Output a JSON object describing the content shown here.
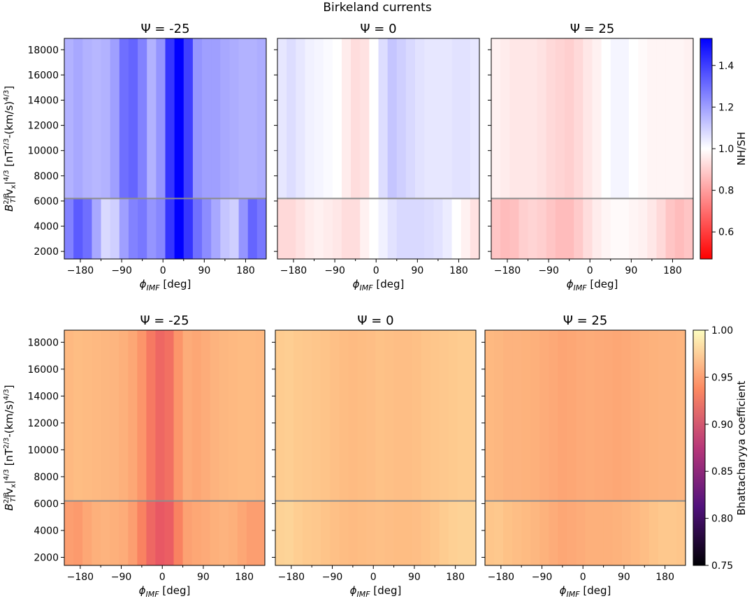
{
  "figure_title": "Birkeland currents",
  "x_tick_labels": [
    "−180",
    "−90",
    "0",
    "90",
    "180"
  ],
  "y_tick_labels": [
    "2000",
    "4000",
    "6000",
    "8000",
    "10000",
    "12000",
    "14000",
    "16000",
    "18000"
  ],
  "x_axis_label": {
    "phi": "ϕ",
    "sub": "IMF",
    "unit": " [deg]"
  },
  "y_axis_label": {
    "b": "B",
    "b_sub": "T",
    "b_sup": "2/3",
    "v": "|v",
    "v_sub": "x",
    "bar": "|",
    "v_sup": "4/3",
    "unit": " [nT",
    "unit_sup": "2/3",
    "unit_mid": "-(km/s)",
    "unit_sup2": "4/3",
    "close": "]"
  },
  "colorbars": {
    "top": {
      "label": "NH/SH",
      "ticks": [
        "0.6",
        "0.8",
        "1.0",
        "1.2",
        "1.4"
      ],
      "colors": {
        "low": "#ff0000",
        "mid": "#ffffff",
        "high": "#0000ff"
      }
    },
    "bottom": {
      "label": "Bhattacharyya coefficient",
      "ticks": [
        "0.75",
        "0.80",
        "0.85",
        "0.90",
        "0.95",
        "1.00"
      ],
      "colormap": "magma"
    }
  },
  "reference_line_color": "#8c8c8c",
  "chart_data": [
    {
      "type": "heatmap",
      "row": "top",
      "psi_label": "Ψ = -25",
      "metric": "NH/SH",
      "x": [
        -205,
        -185,
        -165,
        -145,
        -125,
        -105,
        -85,
        -65,
        -45,
        -25,
        -5,
        15,
        35,
        55,
        75,
        95,
        115,
        135,
        155,
        175,
        195,
        215
      ],
      "xlim": [
        -215,
        225
      ],
      "ylim": [
        1400,
        18900
      ],
      "split_y": 6200,
      "reference_y": 6200,
      "colorbar_range": [
        0.47,
        1.53
      ],
      "values_upper": [
        1.16,
        1.18,
        1.16,
        1.15,
        1.16,
        1.2,
        1.3,
        1.32,
        1.26,
        1.16,
        1.22,
        1.42,
        1.53,
        1.4,
        1.22,
        1.2,
        1.2,
        1.18,
        1.17,
        1.16,
        1.16,
        1.17
      ],
      "values_lower": [
        1.26,
        1.34,
        1.3,
        1.18,
        1.08,
        1.1,
        1.2,
        1.26,
        1.28,
        1.22,
        1.25,
        1.42,
        1.53,
        1.42,
        1.3,
        1.24,
        1.18,
        1.12,
        1.1,
        1.22,
        1.32,
        1.28
      ]
    },
    {
      "type": "heatmap",
      "row": "top",
      "psi_label": "Ψ = 0",
      "metric": "NH/SH",
      "x": [
        -205,
        -185,
        -165,
        -145,
        -125,
        -105,
        -85,
        -65,
        -45,
        -25,
        -5,
        15,
        35,
        55,
        75,
        95,
        115,
        135,
        155,
        175,
        195,
        215
      ],
      "xlim": [
        -215,
        225
      ],
      "ylim": [
        1400,
        18900
      ],
      "split_y": 6200,
      "reference_y": 6200,
      "colorbar_range": [
        0.47,
        1.53
      ],
      "values_upper": [
        1.05,
        1.07,
        1.05,
        1.03,
        1.02,
        1.01,
        1.0,
        0.96,
        0.93,
        0.94,
        1.0,
        1.07,
        1.12,
        1.1,
        1.08,
        1.06,
        1.05,
        1.05,
        1.05,
        1.06,
        1.06,
        1.05
      ],
      "values_lower": [
        0.92,
        0.92,
        0.94,
        0.96,
        0.97,
        0.96,
        0.95,
        0.93,
        0.93,
        0.97,
        1.0,
        1.03,
        1.06,
        1.08,
        1.08,
        1.08,
        1.07,
        1.06,
        1.04,
        1.0,
        0.97,
        0.94
      ]
    },
    {
      "type": "heatmap",
      "row": "top",
      "psi_label": "Ψ = 25",
      "metric": "NH/SH",
      "x": [
        -205,
        -185,
        -165,
        -145,
        -125,
        -105,
        -85,
        -65,
        -45,
        -25,
        -5,
        15,
        35,
        55,
        75,
        95,
        115,
        135,
        155,
        175,
        195,
        215
      ],
      "xlim": [
        -215,
        225
      ],
      "ylim": [
        1400,
        18900
      ],
      "split_y": 6200,
      "reference_y": 6200,
      "colorbar_range": [
        0.47,
        1.53
      ],
      "values_upper": [
        0.97,
        0.96,
        0.95,
        0.95,
        0.95,
        0.94,
        0.92,
        0.91,
        0.9,
        0.92,
        0.95,
        0.97,
        1.0,
        1.02,
        1.02,
        1.0,
        0.99,
        0.98,
        0.98,
        0.98,
        0.98,
        0.97
      ],
      "values_lower": [
        0.88,
        0.86,
        0.87,
        0.9,
        0.91,
        0.9,
        0.88,
        0.86,
        0.86,
        0.89,
        0.93,
        0.96,
        0.98,
        0.99,
        0.99,
        0.98,
        0.97,
        0.95,
        0.92,
        0.88,
        0.86,
        0.88
      ]
    },
    {
      "type": "heatmap",
      "row": "bottom",
      "psi_label": "Ψ = -25",
      "metric": "Bhattacharyya coefficient",
      "x": [
        -205,
        -185,
        -165,
        -145,
        -125,
        -105,
        -85,
        -65,
        -45,
        -25,
        -5,
        15,
        35,
        55,
        75,
        95,
        115,
        135,
        155,
        175,
        195,
        215
      ],
      "xlim": [
        -215,
        225
      ],
      "ylim": [
        1400,
        18900
      ],
      "split_y": 6200,
      "reference_y": 6200,
      "colorbar_range": [
        0.75,
        1.0
      ],
      "values_upper": [
        0.965,
        0.967,
        0.966,
        0.965,
        0.964,
        0.963,
        0.96,
        0.955,
        0.945,
        0.93,
        0.92,
        0.925,
        0.945,
        0.958,
        0.955,
        0.958,
        0.962,
        0.964,
        0.965,
        0.966,
        0.966,
        0.965
      ],
      "values_lower": [
        0.95,
        0.948,
        0.955,
        0.96,
        0.962,
        0.96,
        0.958,
        0.95,
        0.935,
        0.92,
        0.912,
        0.915,
        0.935,
        0.952,
        0.955,
        0.957,
        0.96,
        0.962,
        0.96,
        0.955,
        0.95,
        0.95
      ]
    },
    {
      "type": "heatmap",
      "row": "bottom",
      "psi_label": "Ψ = 0",
      "metric": "Bhattacharyya coefficient",
      "x": [
        -205,
        -185,
        -165,
        -145,
        -125,
        -105,
        -85,
        -65,
        -45,
        -25,
        -5,
        15,
        35,
        55,
        75,
        95,
        115,
        135,
        155,
        175,
        195,
        215
      ],
      "xlim": [
        -215,
        225
      ],
      "ylim": [
        1400,
        18900
      ],
      "split_y": 6200,
      "reference_y": 6200,
      "colorbar_range": [
        0.75,
        1.0
      ],
      "values_upper": [
        0.975,
        0.976,
        0.974,
        0.973,
        0.972,
        0.971,
        0.969,
        0.967,
        0.966,
        0.967,
        0.968,
        0.97,
        0.969,
        0.968,
        0.968,
        0.969,
        0.971,
        0.972,
        0.973,
        0.974,
        0.975,
        0.975
      ],
      "values_lower": [
        0.978,
        0.979,
        0.976,
        0.974,
        0.973,
        0.971,
        0.969,
        0.967,
        0.966,
        0.967,
        0.968,
        0.969,
        0.968,
        0.967,
        0.967,
        0.968,
        0.97,
        0.972,
        0.975,
        0.977,
        0.978,
        0.978
      ]
    },
    {
      "type": "heatmap",
      "row": "bottom",
      "psi_label": "Ψ = 25",
      "metric": "Bhattacharyya coefficient",
      "x": [
        -205,
        -185,
        -165,
        -145,
        -125,
        -105,
        -85,
        -65,
        -45,
        -25,
        -5,
        15,
        35,
        55,
        75,
        95,
        115,
        135,
        155,
        175,
        195,
        215
      ],
      "xlim": [
        -215,
        225
      ],
      "ylim": [
        1400,
        18900
      ],
      "split_y": 6200,
      "reference_y": 6200,
      "colorbar_range": [
        0.75,
        1.0
      ],
      "values_upper": [
        0.965,
        0.964,
        0.962,
        0.962,
        0.961,
        0.96,
        0.958,
        0.956,
        0.954,
        0.955,
        0.957,
        0.958,
        0.957,
        0.956,
        0.955,
        0.956,
        0.958,
        0.96,
        0.961,
        0.962,
        0.962,
        0.963
      ],
      "values_lower": [
        0.972,
        0.973,
        0.97,
        0.968,
        0.966,
        0.964,
        0.961,
        0.958,
        0.955,
        0.956,
        0.958,
        0.96,
        0.96,
        0.96,
        0.961,
        0.963,
        0.965,
        0.968,
        0.971,
        0.973,
        0.973,
        0.972
      ]
    }
  ]
}
